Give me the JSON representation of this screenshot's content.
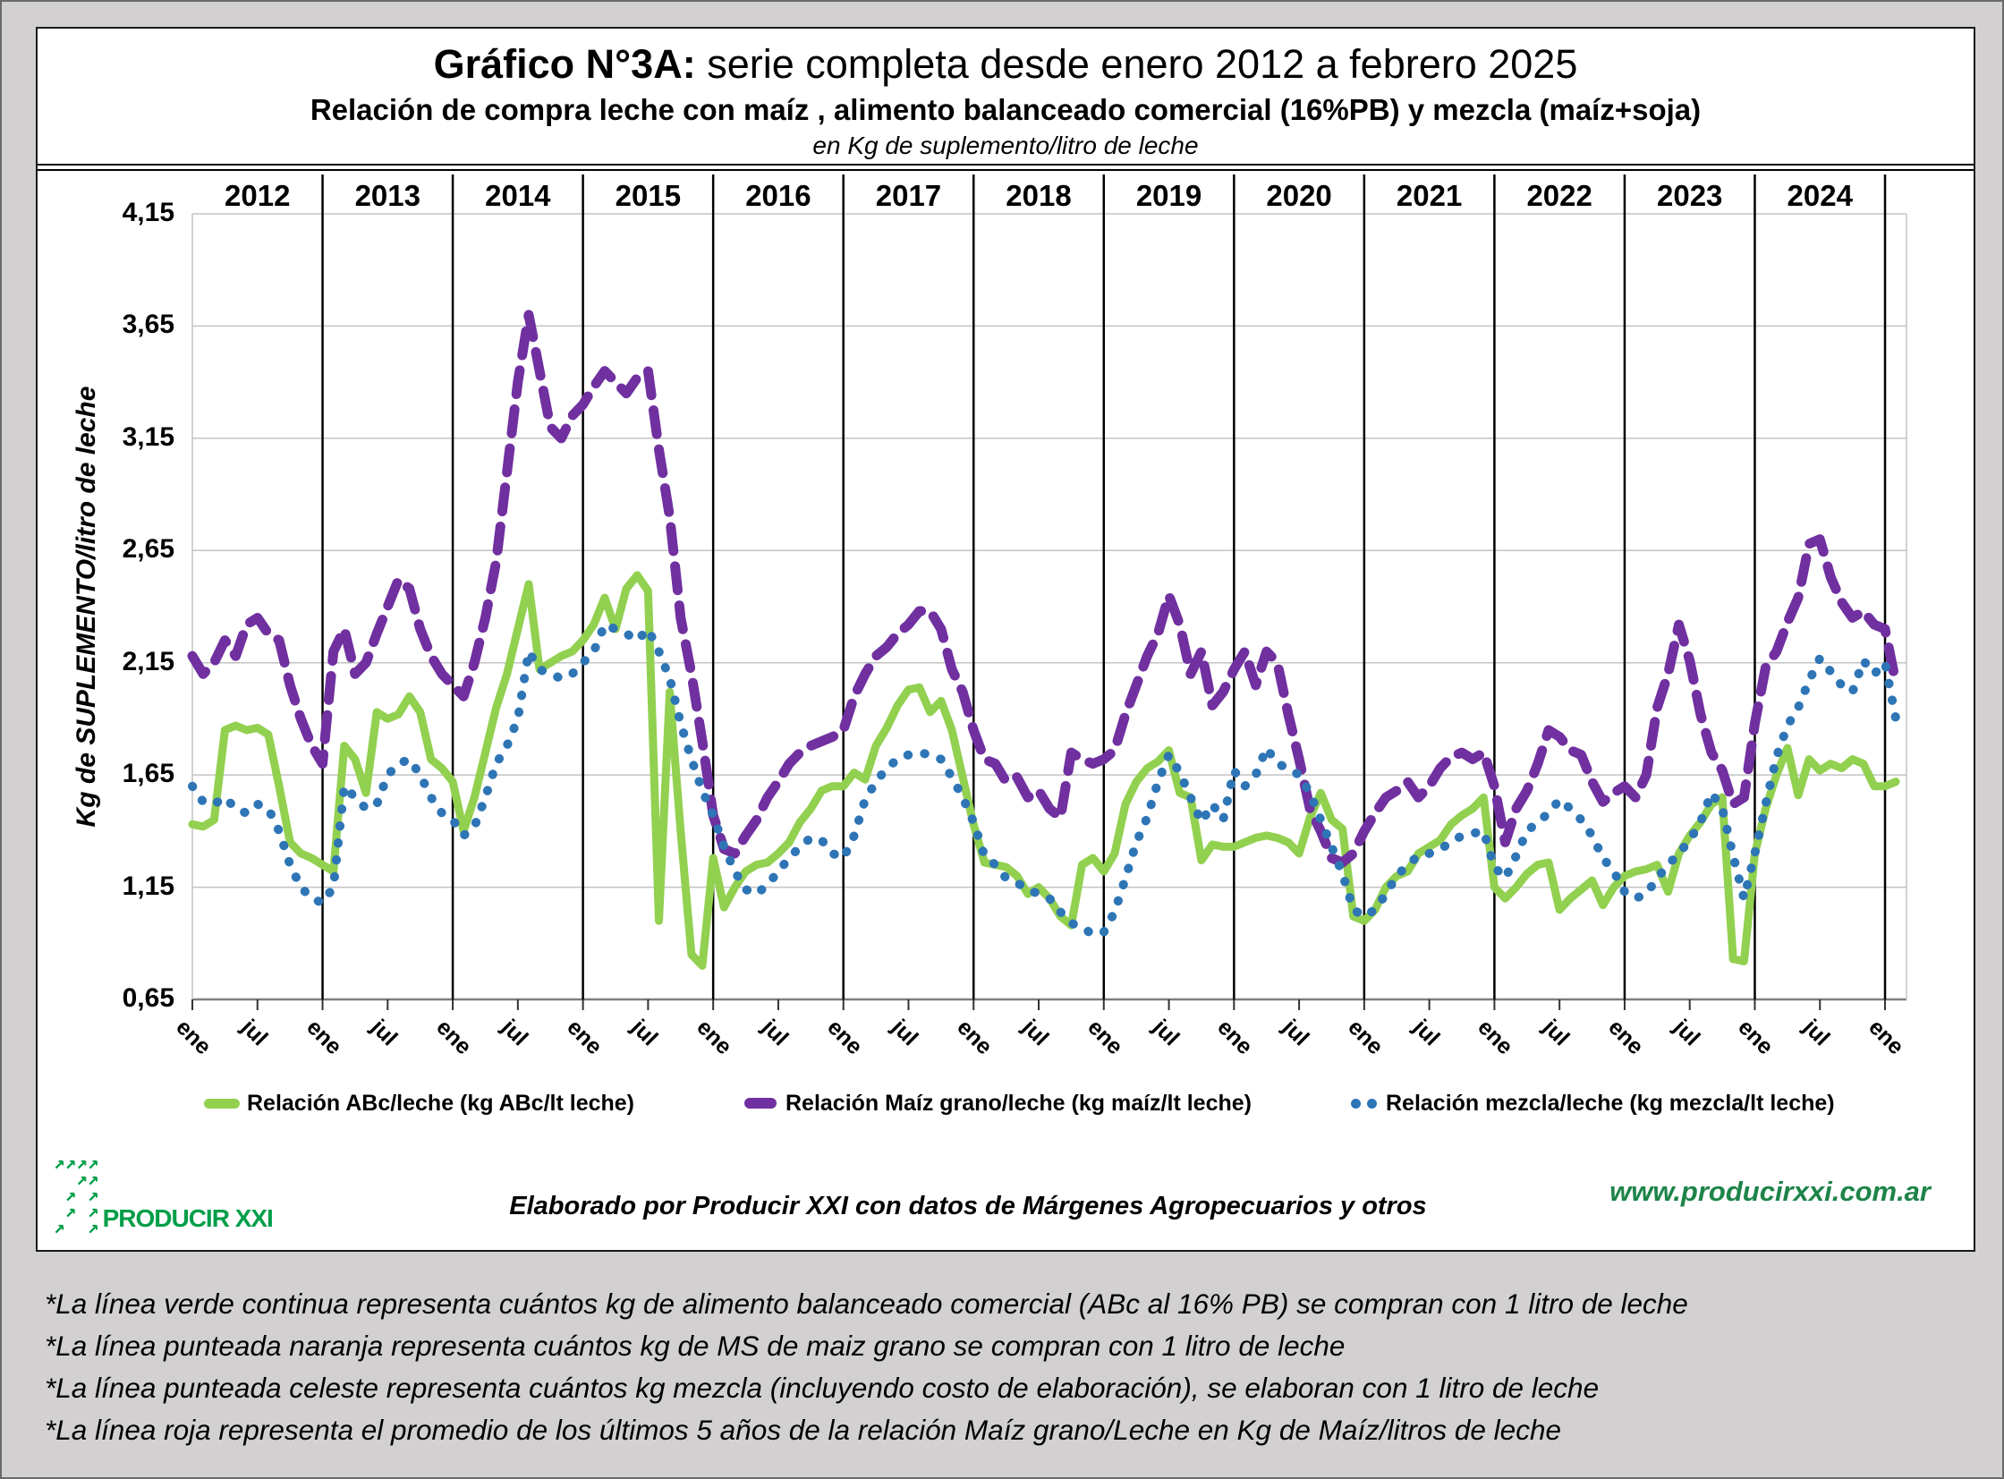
{
  "header": {
    "title_prefix": "Gráfico N°3A:",
    "title_rest": " serie completa desde enero 2012 a febrero 2025",
    "subtitle": "Relación de compra leche con maíz , alimento balanceado comercial (16%PB) y mezcla (maíz+soja)",
    "unit_line": "en Kg de suplemento/litro de leche"
  },
  "y_axis": {
    "label": "Kg de SUPLEMENTO/litro de leche",
    "ticks": [
      "4,15",
      "3,65",
      "3,15",
      "2,65",
      "2,15",
      "1,65",
      "1,15",
      "0,65"
    ],
    "min": 0.65,
    "max": 4.15
  },
  "legend": {
    "items": [
      {
        "label": "Relación ABc/leche (kg ABc/lt leche)",
        "marker": "solid-line",
        "color": "#92D050"
      },
      {
        "label": "Relación Maíz grano/leche (kg maíz/lt leche)",
        "marker": "dash",
        "color": "#7030A0"
      },
      {
        "label": "Relación mezcla/leche (kg mezcla/lt leche)",
        "marker": "dots",
        "color": "#2E75B6"
      }
    ]
  },
  "footer": {
    "credit": "Elaborado por Producir XXI con datos de Márgenes Agropecuarios y otros",
    "url": "www.producirxxi.com.ar",
    "logo": {
      "text": "PRODUCIR XXI",
      "art": [
        "↗↗↗↗",
        "  ↗↗",
        " ↗ ↗",
        " ↗ ↗",
        "↗  ↗"
      ],
      "color": "#009E49",
      "url_color": "#1E8449"
    }
  },
  "notes": [
    "*La línea verde continua representa cuántos kg de alimento balanceado comercial (ABc al 16% PB) se compran con 1 litro de leche",
    "*La línea punteada naranja representa cuántos kg de MS de maiz grano se compran con 1 litro de leche",
    "*La línea punteada celeste representa cuántos kg mezcla (incluyendo costo de elaboración), se elaboran con 1 litro de leche",
    "*La línea roja representa el promedio de los últimos 5 años de la relación Maíz grano/Leche en Kg de Maíz/litros de leche"
  ],
  "chart_data": {
    "type": "line",
    "x_start": "2012-01",
    "x_end": "2025-02",
    "interval": "monthly",
    "ylim": [
      0.65,
      4.15
    ],
    "grid": "horizontal",
    "legend_position": "bottom",
    "year_labels": [
      "2012",
      "2013",
      "2014",
      "2015",
      "2016",
      "2017",
      "2018",
      "2019",
      "2020",
      "2021",
      "2022",
      "2023",
      "2024"
    ],
    "x_tick_labels": [
      "ene",
      "jul",
      "ene",
      "jul",
      "ene",
      "jul",
      "ene",
      "jul",
      "ene",
      "jul",
      "ene",
      "jul",
      "ene",
      "jul",
      "ene",
      "jul",
      "ene",
      "jul",
      "ene",
      "jul",
      "ene",
      "jul",
      "ene",
      "jul",
      "ene",
      "jul",
      "ene"
    ],
    "series": [
      {
        "name": "Relación ABc/leche (kg ABc/lt leche)",
        "color": "#92D050",
        "style": "solid",
        "values": [
          1.43,
          1.42,
          1.45,
          1.85,
          1.87,
          1.85,
          1.86,
          1.83,
          1.6,
          1.35,
          1.3,
          1.28,
          1.25,
          1.22,
          1.78,
          1.72,
          1.57,
          1.93,
          1.9,
          1.92,
          2.0,
          1.93,
          1.72,
          1.68,
          1.62,
          1.4,
          1.55,
          1.75,
          1.95,
          2.1,
          2.3,
          2.5,
          2.12,
          2.15,
          2.18,
          2.2,
          2.25,
          2.32,
          2.44,
          2.3,
          2.48,
          2.54,
          2.47,
          1.0,
          2.02,
          1.4,
          0.85,
          0.8,
          1.28,
          1.06,
          1.15,
          1.22,
          1.25,
          1.26,
          1.3,
          1.35,
          1.44,
          1.5,
          1.58,
          1.6,
          1.6,
          1.66,
          1.63,
          1.78,
          1.86,
          1.96,
          2.03,
          2.04,
          1.93,
          1.98,
          1.85,
          1.64,
          1.43,
          1.26,
          1.25,
          1.24,
          1.2,
          1.12,
          1.15,
          1.1,
          1.02,
          0.98,
          1.25,
          1.28,
          1.22,
          1.3,
          1.52,
          1.62,
          1.68,
          1.71,
          1.76,
          1.57,
          1.55,
          1.27,
          1.34,
          1.33,
          1.33,
          1.35,
          1.37,
          1.38,
          1.37,
          1.35,
          1.3,
          1.46,
          1.57,
          1.45,
          1.41,
          1.02,
          1.0,
          1.05,
          1.15,
          1.2,
          1.22,
          1.3,
          1.33,
          1.36,
          1.43,
          1.47,
          1.5,
          1.55,
          1.15,
          1.1,
          1.15,
          1.21,
          1.25,
          1.26,
          1.05,
          1.1,
          1.14,
          1.18,
          1.07,
          1.15,
          1.2,
          1.22,
          1.23,
          1.25,
          1.13,
          1.3,
          1.38,
          1.44,
          1.52,
          1.55,
          0.83,
          0.82,
          1.3,
          1.5,
          1.65,
          1.77,
          1.56,
          1.72,
          1.67,
          1.7,
          1.68,
          1.72,
          1.7,
          1.6,
          1.6,
          1.62
        ]
      },
      {
        "name": "Relación Maíz grano/leche (kg maíz/lt leche)",
        "color": "#7030A0",
        "style": "dashed",
        "values": [
          2.18,
          2.1,
          2.15,
          2.25,
          2.18,
          2.32,
          2.35,
          2.28,
          2.25,
          2.05,
          1.9,
          1.78,
          1.7,
          2.2,
          2.3,
          2.1,
          2.15,
          2.28,
          2.4,
          2.52,
          2.48,
          2.3,
          2.18,
          2.1,
          2.05,
          2.0,
          2.15,
          2.35,
          2.6,
          3.0,
          3.4,
          3.7,
          3.45,
          3.2,
          3.15,
          3.25,
          3.3,
          3.38,
          3.45,
          3.4,
          3.35,
          3.42,
          3.45,
          3.1,
          2.8,
          2.35,
          2.1,
          1.8,
          1.47,
          1.32,
          1.3,
          1.38,
          1.45,
          1.55,
          1.62,
          1.7,
          1.75,
          1.78,
          1.8,
          1.82,
          1.85,
          2.0,
          2.1,
          2.18,
          2.22,
          2.28,
          2.32,
          2.38,
          2.38,
          2.3,
          2.12,
          2.02,
          1.85,
          1.72,
          1.7,
          1.62,
          1.64,
          1.55,
          1.58,
          1.5,
          1.46,
          1.75,
          1.72,
          1.7,
          1.72,
          1.76,
          1.92,
          2.05,
          2.18,
          2.28,
          2.45,
          2.32,
          2.1,
          2.2,
          1.96,
          2.02,
          2.12,
          2.2,
          2.05,
          2.2,
          2.15,
          1.92,
          1.72,
          1.5,
          1.4,
          1.28,
          1.26,
          1.3,
          1.4,
          1.48,
          1.55,
          1.58,
          1.62,
          1.55,
          1.6,
          1.68,
          1.73,
          1.75,
          1.72,
          1.75,
          1.6,
          1.35,
          1.5,
          1.58,
          1.7,
          1.85,
          1.82,
          1.76,
          1.74,
          1.62,
          1.53,
          1.57,
          1.6,
          1.55,
          1.65,
          1.95,
          2.1,
          2.32,
          2.16,
          1.92,
          1.75,
          1.67,
          1.52,
          1.55,
          1.88,
          2.13,
          2.2,
          2.33,
          2.44,
          2.68,
          2.7,
          2.53,
          2.42,
          2.35,
          2.38,
          2.32,
          2.3,
          2.06
        ]
      },
      {
        "name": "Relación mezcla/leche (kg mezcla/lt leche)",
        "color": "#2E75B6",
        "style": "dotted",
        "values": [
          1.6,
          1.53,
          1.52,
          1.55,
          1.5,
          1.48,
          1.52,
          1.5,
          1.4,
          1.25,
          1.15,
          1.1,
          1.08,
          1.15,
          1.6,
          1.55,
          1.5,
          1.52,
          1.65,
          1.7,
          1.72,
          1.65,
          1.55,
          1.48,
          1.45,
          1.38,
          1.42,
          1.55,
          1.7,
          1.78,
          1.9,
          2.2,
          2.12,
          2.1,
          2.08,
          2.1,
          2.15,
          2.2,
          2.32,
          2.3,
          2.28,
          2.25,
          2.3,
          2.2,
          2.08,
          1.88,
          1.72,
          1.58,
          1.47,
          1.33,
          1.22,
          1.14,
          1.12,
          1.16,
          1.22,
          1.28,
          1.33,
          1.37,
          1.36,
          1.3,
          1.28,
          1.38,
          1.54,
          1.62,
          1.68,
          1.72,
          1.74,
          1.75,
          1.74,
          1.72,
          1.64,
          1.55,
          1.44,
          1.29,
          1.25,
          1.19,
          1.17,
          1.14,
          1.12,
          1.1,
          1.04,
          0.99,
          0.97,
          0.94,
          0.95,
          1.04,
          1.19,
          1.35,
          1.46,
          1.62,
          1.74,
          1.66,
          1.55,
          1.44,
          1.52,
          1.45,
          1.67,
          1.6,
          1.65,
          1.77,
          1.7,
          1.68,
          1.65,
          1.57,
          1.45,
          1.33,
          1.21,
          1.05,
          1.02,
          1.05,
          1.12,
          1.2,
          1.25,
          1.29,
          1.3,
          1.32,
          1.35,
          1.38,
          1.39,
          1.4,
          1.24,
          1.19,
          1.29,
          1.4,
          1.44,
          1.48,
          1.54,
          1.5,
          1.45,
          1.38,
          1.28,
          1.22,
          1.13,
          1.1,
          1.12,
          1.19,
          1.25,
          1.3,
          1.36,
          1.44,
          1.57,
          1.5,
          1.29,
          1.1,
          1.3,
          1.52,
          1.73,
          1.87,
          1.95,
          2.07,
          2.17,
          2.11,
          2.05,
          2.02,
          2.16,
          2.1,
          2.15,
          1.9
        ]
      }
    ]
  },
  "colors": {
    "grid": "#C3C3C3",
    "axis": "#7F7F7F",
    "separator": "#000000",
    "page_bg": "#D2D0D0",
    "box_bg": "#FFFFFF"
  }
}
